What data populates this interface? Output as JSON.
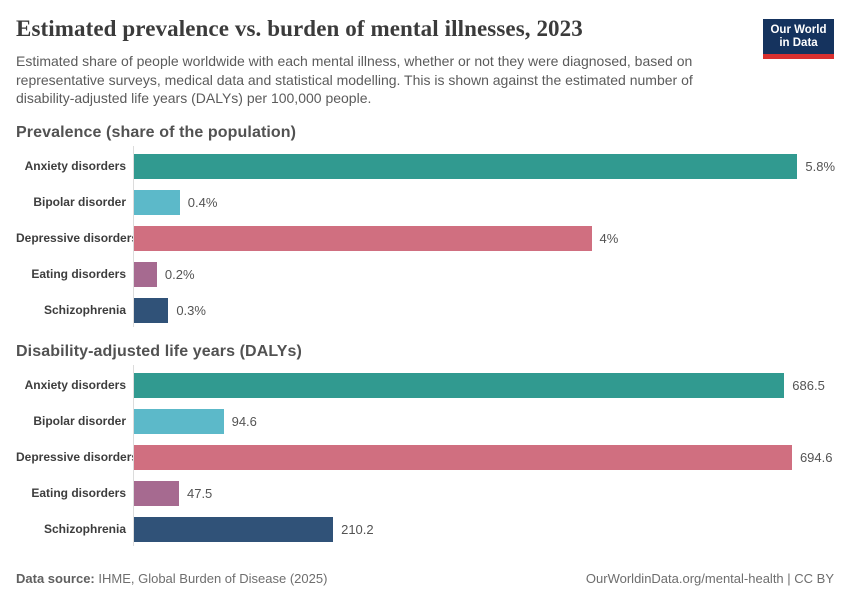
{
  "header": {
    "title": "Estimated prevalence vs. burden of mental illnesses, 2023",
    "subtitle": "Estimated share of people worldwide with each mental illness, whether or not they were diagnosed, based on representative surveys, medical data and statistical modelling. This is shown against the estimated number of disability-adjusted life years (DALYs) per 100,000 people.",
    "logo": {
      "line1": "Our World",
      "line2": "in Data"
    }
  },
  "colors": {
    "teal": "#319a90",
    "cyan": "#5cb9c9",
    "rose": "#d06f80",
    "mauve": "#a66a90",
    "navy": "#305278",
    "logo_bg": "#15335e",
    "logo_stripe": "#d9302f",
    "axis_line": "#dcdcdc"
  },
  "chart_data": [
    {
      "type": "bar",
      "orientation": "horizontal",
      "title": "Prevalence (share of the population)",
      "categories": [
        "Anxiety disorders",
        "Bipolar disorder",
        "Depressive disorders",
        "Eating disorders",
        "Schizophrenia"
      ],
      "values": [
        5.8,
        0.4,
        4,
        0.2,
        0.3
      ],
      "value_labels": [
        "5.8%",
        "0.4%",
        "4%",
        "0.2%",
        "0.3%"
      ],
      "bar_colors": [
        "#319a90",
        "#5cb9c9",
        "#d06f80",
        "#a66a90",
        "#305278"
      ],
      "unit": "% of population",
      "xlim": [
        0,
        6.12
      ],
      "grid": false,
      "legend": "none"
    },
    {
      "type": "bar",
      "orientation": "horizontal",
      "title": "Disability-adjusted life years (DALYs)",
      "categories": [
        "Anxiety disorders",
        "Bipolar disorder",
        "Depressive disorders",
        "Eating disorders",
        "Schizophrenia"
      ],
      "values": [
        686.5,
        94.6,
        694.6,
        47.5,
        210.2
      ],
      "value_labels": [
        "686.5",
        "94.6",
        "694.6",
        "47.5",
        "210.2"
      ],
      "bar_colors": [
        "#319a90",
        "#5cb9c9",
        "#d06f80",
        "#a66a90",
        "#305278"
      ],
      "unit": "DALYs per 100,000 people",
      "xlim": [
        0,
        739
      ],
      "grid": false,
      "legend": "none"
    }
  ],
  "footer": {
    "source_label": "Data source:",
    "source_text": " IHME, Global Burden of Disease (2025)",
    "right_text": "OurWorldinData.org/mental-health | CC BY"
  }
}
